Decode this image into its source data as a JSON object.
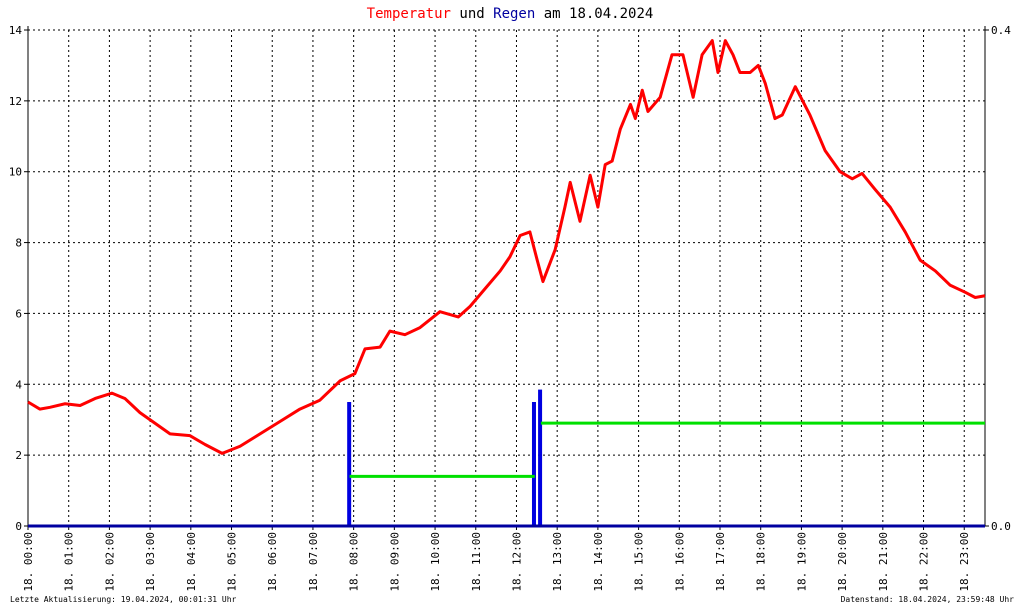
{
  "chart_data": {
    "type": "line",
    "title_parts": [
      {
        "text": "Temperatur",
        "color": "#ff0000"
      },
      {
        "text": "und",
        "color": "#000000"
      },
      {
        "text": "Regen",
        "color": "#0000a0"
      },
      {
        "text": "am 18.04.2024",
        "color": "#000000"
      }
    ],
    "xlim": [
      0,
      23.51
    ],
    "xticks": [
      {
        "value": 0,
        "label": "18. 00:00"
      },
      {
        "value": 1,
        "label": "18. 01:00"
      },
      {
        "value": 2,
        "label": "18. 02:00"
      },
      {
        "value": 3,
        "label": "18. 03:00"
      },
      {
        "value": 4,
        "label": "18. 04:00"
      },
      {
        "value": 5,
        "label": "18. 05:00"
      },
      {
        "value": 6,
        "label": "18. 06:00"
      },
      {
        "value": 7,
        "label": "18. 07:00"
      },
      {
        "value": 8,
        "label": "18. 08:00"
      },
      {
        "value": 9,
        "label": "18. 09:00"
      },
      {
        "value": 10,
        "label": "18. 10:00"
      },
      {
        "value": 11,
        "label": "18. 11:00"
      },
      {
        "value": 12,
        "label": "18. 12:00"
      },
      {
        "value": 13,
        "label": "18. 13:00"
      },
      {
        "value": 14,
        "label": "18. 14:00"
      },
      {
        "value": 15,
        "label": "18. 15:00"
      },
      {
        "value": 16,
        "label": "18. 16:00"
      },
      {
        "value": 17,
        "label": "18. 17:00"
      },
      {
        "value": 18,
        "label": "18. 18:00"
      },
      {
        "value": 19,
        "label": "18. 19:00"
      },
      {
        "value": 20,
        "label": "18. 20:00"
      },
      {
        "value": 21,
        "label": "18. 21:00"
      },
      {
        "value": 22,
        "label": "18. 22:00"
      },
      {
        "value": 23,
        "label": "18. 23:00"
      }
    ],
    "ylim": [
      0,
      14
    ],
    "yticks": [
      0,
      2,
      4,
      6,
      8,
      10,
      12,
      14
    ],
    "y2lim": [
      0,
      0.4
    ],
    "y2ticks": [
      {
        "value": 0,
        "label": "0.0"
      },
      {
        "value": 0.4,
        "label": "0.4"
      }
    ],
    "grid": true,
    "series": [
      {
        "type": "line",
        "color": "#ff0000",
        "x": [
          0,
          0.29,
          0.54,
          0.91,
          1.28,
          1.65,
          2.06,
          2.38,
          2.75,
          3.12,
          3.49,
          3.98,
          4.35,
          4.77,
          5.21,
          5.7,
          6.19,
          6.68,
          7.17,
          7.67,
          8.03,
          8.28,
          8.65,
          8.89,
          9.26,
          9.63,
          10.12,
          10.57,
          10.86,
          11.23,
          11.6,
          11.84,
          12.09,
          12.33,
          12.51,
          12.65,
          12.95,
          13.19,
          13.32,
          13.56,
          13.81,
          14.0,
          14.18,
          14.35,
          14.55,
          14.8,
          14.92,
          15.09,
          15.23,
          15.53,
          15.82,
          16.09,
          16.34,
          16.56,
          16.81,
          16.95,
          17.13,
          17.32,
          17.49,
          17.74,
          17.94,
          18.11,
          18.35,
          18.53,
          18.85,
          19.21,
          19.58,
          19.95,
          20.25,
          20.49,
          20.81,
          21.18,
          21.55,
          21.92,
          22.29,
          22.65,
          23.02,
          23.27,
          23.51
        ],
        "values": [
          3.5,
          3.3,
          3.35,
          3.45,
          3.4,
          3.6,
          3.75,
          3.6,
          3.2,
          2.9,
          2.6,
          2.55,
          2.3,
          2.05,
          2.25,
          2.6,
          2.95,
          3.3,
          3.55,
          4.1,
          4.3,
          5.0,
          5.05,
          5.5,
          5.4,
          5.6,
          6.05,
          5.9,
          6.2,
          6.7,
          7.2,
          7.6,
          8.2,
          8.3,
          7.5,
          6.9,
          7.8,
          9.0,
          9.7,
          8.6,
          9.9,
          9.0,
          10.2,
          10.3,
          11.2,
          11.9,
          11.5,
          12.3,
          11.7,
          12.1,
          13.3,
          13.3,
          12.1,
          13.3,
          13.7,
          12.8,
          13.7,
          13.3,
          12.8,
          12.8,
          13.0,
          12.5,
          11.5,
          11.6,
          12.4,
          11.6,
          10.6,
          10.0,
          9.8,
          9.95,
          9.5,
          9.0,
          8.3,
          7.5,
          7.2,
          6.8,
          6.6,
          6.45,
          6.5
        ]
      },
      {
        "type": "bar",
        "axis": "y2",
        "color": "#0000e0",
        "x": [
          7.89,
          12.43,
          12.58
        ],
        "values": [
          0.1,
          0.1,
          0.11
        ]
      },
      {
        "type": "line",
        "axis": "y2",
        "color": "#00e000",
        "x": [
          7.9,
          12.45,
          12.5,
          12.6,
          23.51
        ],
        "values": [
          0.04,
          0.04,
          null,
          0.083,
          0.083
        ]
      }
    ]
  },
  "footer": {
    "left": "Letzte Aktualisierung: 19.04.2024, 00:01:31 Uhr",
    "right": "Datenstand: 18.04.2024, 23:59:48 Uhr"
  }
}
